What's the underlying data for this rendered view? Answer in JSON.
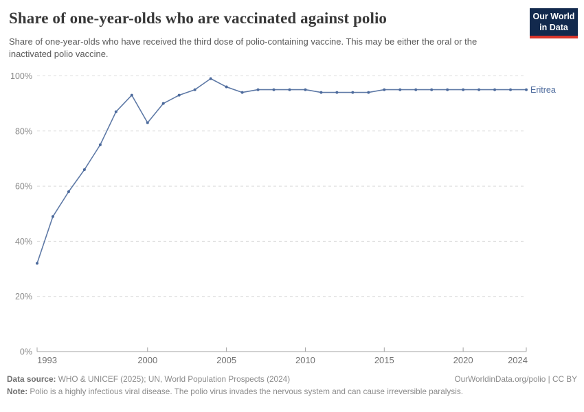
{
  "header": {
    "title": "Share of one-year-olds who are vaccinated against polio",
    "subtitle": "Share of one-year-olds who have received the third dose of polio-containing vaccine. This may be either the oral or the inactivated polio vaccine.",
    "logo": {
      "line1": "Our World",
      "line2": "in Data"
    }
  },
  "chart_data": {
    "type": "line",
    "title": "Share of one-year-olds who are vaccinated against polio",
    "entity_label": "Eritrea",
    "xlim": [
      1993,
      2024
    ],
    "ylim": [
      0,
      100
    ],
    "grid": "horizontal-dashed",
    "legend_position": "end-of-line-label",
    "x_tick_years": [
      1993,
      2000,
      2005,
      2010,
      2015,
      2020,
      2024
    ],
    "y_ticks": [
      {
        "label": "0%",
        "value": 0
      },
      {
        "label": "20%",
        "value": 20
      },
      {
        "label": "40%",
        "value": 40
      },
      {
        "label": "60%",
        "value": 60
      },
      {
        "label": "80%",
        "value": 80
      },
      {
        "label": "100%",
        "value": 100
      }
    ],
    "series": [
      {
        "name": "Eritrea",
        "color": "#4c6a9c",
        "x": [
          1993,
          1994,
          1995,
          1996,
          1997,
          1998,
          1999,
          2000,
          2001,
          2002,
          2003,
          2004,
          2005,
          2006,
          2007,
          2008,
          2009,
          2010,
          2011,
          2012,
          2013,
          2014,
          2015,
          2016,
          2017,
          2018,
          2019,
          2020,
          2021,
          2022,
          2023,
          2024
        ],
        "values": [
          32,
          49,
          58,
          66,
          75,
          87,
          93,
          83,
          90,
          93,
          95,
          99,
          96,
          94,
          95,
          95,
          95,
          95,
          94,
          94,
          94,
          94,
          95,
          95,
          95,
          95,
          95,
          95,
          95,
          95,
          95,
          95
        ]
      }
    ]
  },
  "footer": {
    "data_source_label": "Data source:",
    "data_source_text": " WHO & UNICEF (2025); UN, World Population Prospects (2024)",
    "attribution": "OurWorldinData.org/polio | CC BY",
    "note_label": "Note:",
    "note_text": " Polio is a highly infectious viral disease. The polio virus invades the nervous system and can cause irreversible paralysis."
  },
  "colors": {
    "line": "#4c6a9c",
    "grid": "#dadada",
    "axis": "#a3a3a3",
    "y_tick_label": "#8a8a8a",
    "x_tick_label": "#717171",
    "logo_bg": "#12294d",
    "logo_red": "#d8352a"
  }
}
